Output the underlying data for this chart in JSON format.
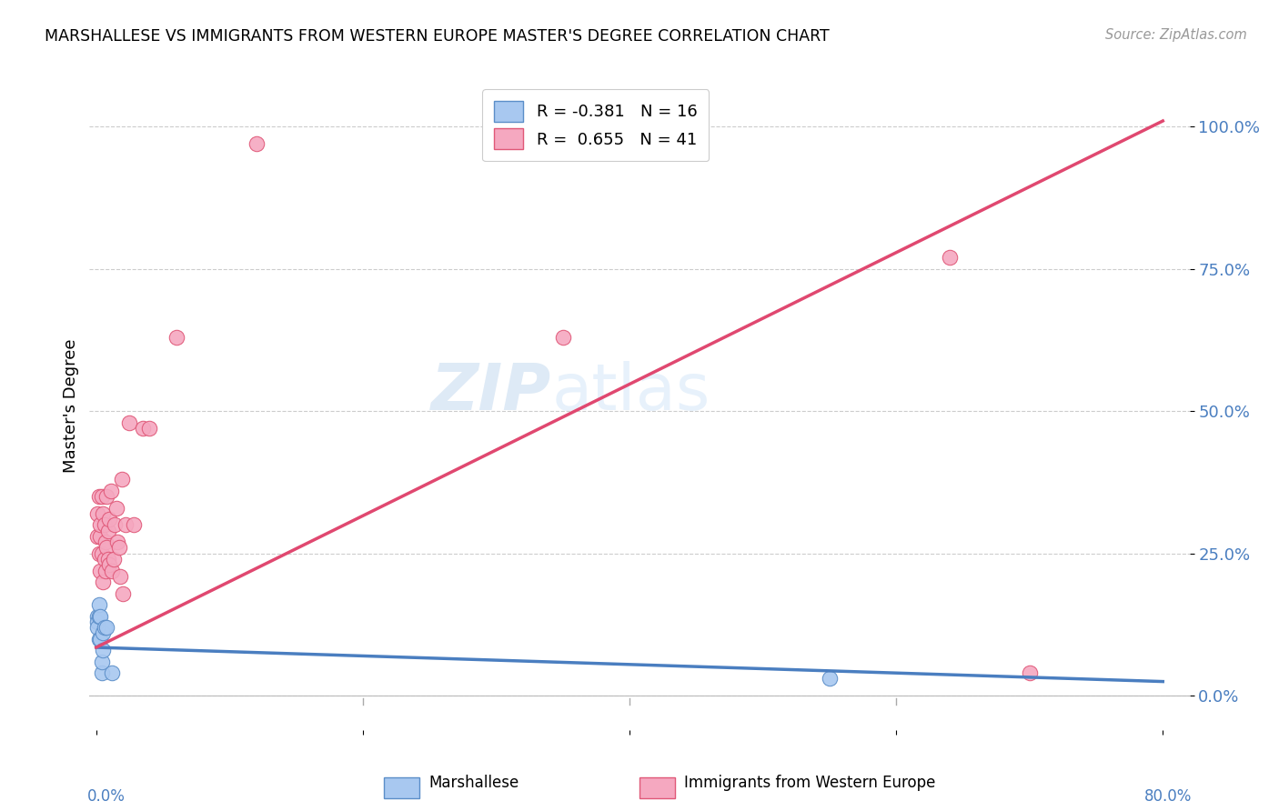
{
  "title": "MARSHALLESE VS IMMIGRANTS FROM WESTERN EUROPE MASTER'S DEGREE CORRELATION CHART",
  "source": "Source: ZipAtlas.com",
  "ylabel": "Master's Degree",
  "ytick_labels": [
    "0.0%",
    "25.0%",
    "50.0%",
    "75.0%",
    "100.0%"
  ],
  "ytick_values": [
    0.0,
    0.25,
    0.5,
    0.75,
    1.0
  ],
  "xtick_labels": [
    "0.0%",
    "",
    "",
    "",
    "80.0%"
  ],
  "xtick_values": [
    0.0,
    0.2,
    0.4,
    0.6,
    0.8
  ],
  "xlim": [
    -0.005,
    0.82
  ],
  "ylim": [
    -0.06,
    1.08
  ],
  "legend_r_blue": "-0.381",
  "legend_n_blue": "16",
  "legend_r_pink": "0.655",
  "legend_n_pink": "41",
  "legend_label_blue": "Marshallese",
  "legend_label_pink": "Immigrants from Western Europe",
  "watermark_1": "ZIP",
  "watermark_2": "atlas",
  "blue_color": "#A8C8F0",
  "pink_color": "#F5A8C0",
  "blue_edge_color": "#5B8EC8",
  "pink_edge_color": "#E05878",
  "blue_line_color": "#4A7EC0",
  "pink_line_color": "#E04870",
  "marshallese_x": [
    0.001,
    0.001,
    0.001,
    0.002,
    0.002,
    0.002,
    0.003,
    0.003,
    0.004,
    0.004,
    0.005,
    0.005,
    0.006,
    0.008,
    0.012,
    0.55
  ],
  "marshallese_y": [
    0.14,
    0.13,
    0.12,
    0.1,
    0.14,
    0.16,
    0.14,
    0.1,
    0.04,
    0.06,
    0.11,
    0.08,
    0.12,
    0.12,
    0.04,
    0.03
  ],
  "western_europe_x": [
    0.001,
    0.001,
    0.002,
    0.002,
    0.003,
    0.003,
    0.003,
    0.004,
    0.004,
    0.005,
    0.005,
    0.006,
    0.006,
    0.007,
    0.007,
    0.008,
    0.008,
    0.009,
    0.009,
    0.01,
    0.01,
    0.011,
    0.012,
    0.013,
    0.014,
    0.015,
    0.016,
    0.017,
    0.018,
    0.019,
    0.02,
    0.022,
    0.025,
    0.028,
    0.035,
    0.04,
    0.06,
    0.12,
    0.35,
    0.64,
    0.7
  ],
  "western_europe_y": [
    0.28,
    0.32,
    0.25,
    0.35,
    0.22,
    0.28,
    0.3,
    0.25,
    0.35,
    0.2,
    0.32,
    0.24,
    0.3,
    0.27,
    0.22,
    0.26,
    0.35,
    0.24,
    0.29,
    0.23,
    0.31,
    0.36,
    0.22,
    0.24,
    0.3,
    0.33,
    0.27,
    0.26,
    0.21,
    0.38,
    0.18,
    0.3,
    0.48,
    0.3,
    0.47,
    0.47,
    0.63,
    0.97,
    0.63,
    0.77,
    0.04
  ],
  "blue_line_x": [
    0.0,
    0.8
  ],
  "blue_line_y": [
    0.085,
    0.025
  ],
  "pink_line_x": [
    0.0,
    0.8
  ],
  "pink_line_y": [
    0.085,
    1.01
  ],
  "grid_color": "#CCCCCC",
  "axis_line_color": "#BBBBBB"
}
